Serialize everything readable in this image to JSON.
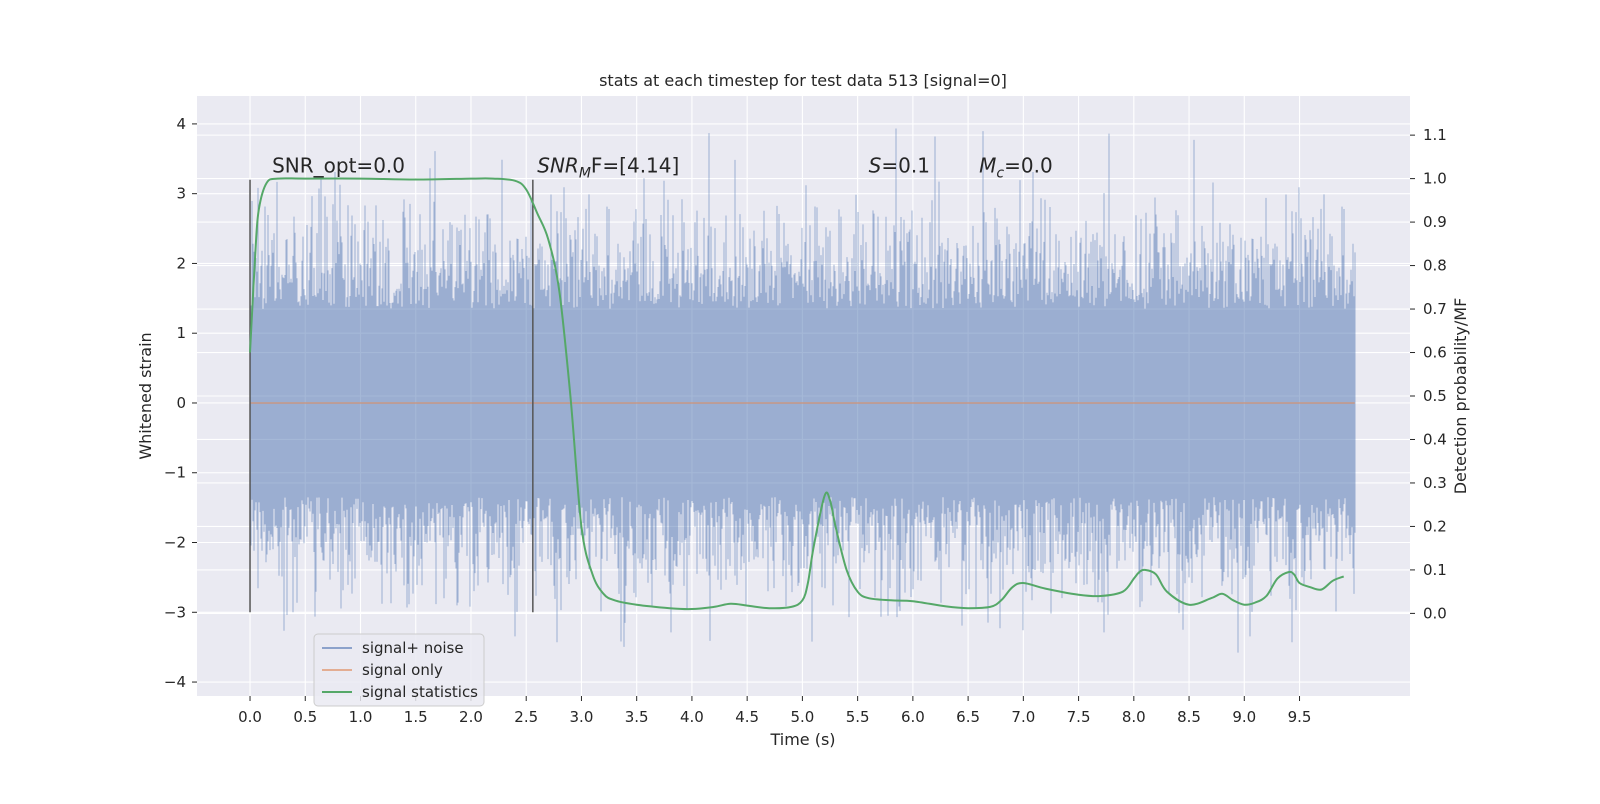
{
  "chart_data": {
    "type": "line",
    "title": "stats at each timestep for test data 513 [signal=0]",
    "xlabel": "Time (s)",
    "ylabel_left": "Whitened strain",
    "ylabel_right": "Detection probability/MF",
    "xlim": [
      -0.48,
      10.5
    ],
    "ylim_left": [
      -4.2,
      4.4
    ],
    "ylim_right": [
      -0.19,
      1.19
    ],
    "x_ticks": [
      0.0,
      0.5,
      1.0,
      1.5,
      2.0,
      2.5,
      3.0,
      3.5,
      4.0,
      4.5,
      5.0,
      5.5,
      6.0,
      6.5,
      7.0,
      7.5,
      8.0,
      8.5,
      9.0,
      9.5
    ],
    "x_tick_labels": [
      "0.0",
      "0.5",
      "1.0",
      "1.5",
      "2.0",
      "2.5",
      "3.0",
      "3.5",
      "4.0",
      "4.5",
      "5.0",
      "5.5",
      "6.0",
      "6.5",
      "7.0",
      "7.5",
      "8.0",
      "8.5",
      "9.0",
      "9.5"
    ],
    "y_left_ticks": [
      -4,
      -3,
      -2,
      -1,
      0,
      1,
      2,
      3,
      4
    ],
    "y_left_tick_labels": [
      "−4",
      "−3",
      "−2",
      "−1",
      "0",
      "1",
      "2",
      "3",
      "4"
    ],
    "y_right_ticks": [
      0.0,
      0.1,
      0.2,
      0.3,
      0.4,
      0.5,
      0.6,
      0.7,
      0.8,
      0.9,
      1.0,
      1.1
    ],
    "y_right_tick_labels": [
      "0.0",
      "0.1",
      "0.2",
      "0.3",
      "0.4",
      "0.5",
      "0.6",
      "0.7",
      "0.8",
      "0.9",
      "1.0",
      "1.1"
    ],
    "grid": true,
    "legend_position": "lower-left",
    "series": [
      {
        "name": "signal+ noise",
        "axis": "left",
        "color": "#4c72b0",
        "x_range": [
          0.0,
          10.0
        ],
        "envelope_min": -3.7,
        "envelope_max": 4.05,
        "note_style": "dense noise"
      },
      {
        "name": "signal only",
        "axis": "left",
        "color": "#dd8452",
        "x": [
          0.0,
          10.0
        ],
        "y": [
          0.0,
          0.0
        ]
      },
      {
        "name": "signal statistics",
        "axis": "right",
        "color": "#55a868",
        "x": [
          0.0,
          0.05,
          0.08,
          0.15,
          0.25,
          0.5,
          1.0,
          1.5,
          2.0,
          2.2,
          2.4,
          2.5,
          2.6,
          2.7,
          2.8,
          2.9,
          3.0,
          3.1,
          3.2,
          3.3,
          3.5,
          3.8,
          4.0,
          4.2,
          4.35,
          4.5,
          4.7,
          4.9,
          5.0,
          5.05,
          5.1,
          5.2,
          5.25,
          5.3,
          5.4,
          5.5,
          5.6,
          5.8,
          6.0,
          6.3,
          6.5,
          6.7,
          6.8,
          6.9,
          7.0,
          7.2,
          7.5,
          7.7,
          7.9,
          8.0,
          8.05,
          8.1,
          8.2,
          8.3,
          8.5,
          8.7,
          8.8,
          8.9,
          9.0,
          9.1,
          9.2,
          9.3,
          9.4,
          9.45,
          9.5,
          9.6,
          9.7,
          9.8,
          9.9
        ],
        "y": [
          0.6,
          0.84,
          0.93,
          0.99,
          1.0,
          1.0,
          1.0,
          0.998,
          1.0,
          1.0,
          0.995,
          0.975,
          0.92,
          0.86,
          0.74,
          0.5,
          0.2,
          0.09,
          0.045,
          0.03,
          0.02,
          0.012,
          0.01,
          0.015,
          0.022,
          0.018,
          0.012,
          0.015,
          0.03,
          0.07,
          0.15,
          0.27,
          0.26,
          0.2,
          0.1,
          0.05,
          0.035,
          0.03,
          0.028,
          0.016,
          0.012,
          0.015,
          0.03,
          0.06,
          0.07,
          0.057,
          0.043,
          0.04,
          0.05,
          0.08,
          0.095,
          0.1,
          0.09,
          0.05,
          0.02,
          0.035,
          0.045,
          0.03,
          0.02,
          0.025,
          0.04,
          0.08,
          0.095,
          0.09,
          0.07,
          0.06,
          0.055,
          0.075,
          0.085
        ]
      }
    ],
    "vlines": [
      {
        "x": 0.0,
        "ymin": -3.0,
        "ymax": 3.2
      },
      {
        "x": 2.56,
        "ymin": -3.0,
        "ymax": 3.2
      }
    ],
    "annotations": [
      {
        "x": 0.2,
        "y": 3.3,
        "text": "SNR_opt=0.0"
      },
      {
        "x": 2.6,
        "y": 3.3,
        "text": "SNR",
        "sub": "M",
        "suffix": "F=[4.14]",
        "italic": true
      },
      {
        "x": 5.6,
        "y": 3.3,
        "text": "S",
        "suffix": "=0.1",
        "italic": true
      },
      {
        "x": 6.6,
        "y": 3.3,
        "text": "M",
        "sub": "c",
        "suffix": "=0.0",
        "italic": true
      }
    ]
  }
}
